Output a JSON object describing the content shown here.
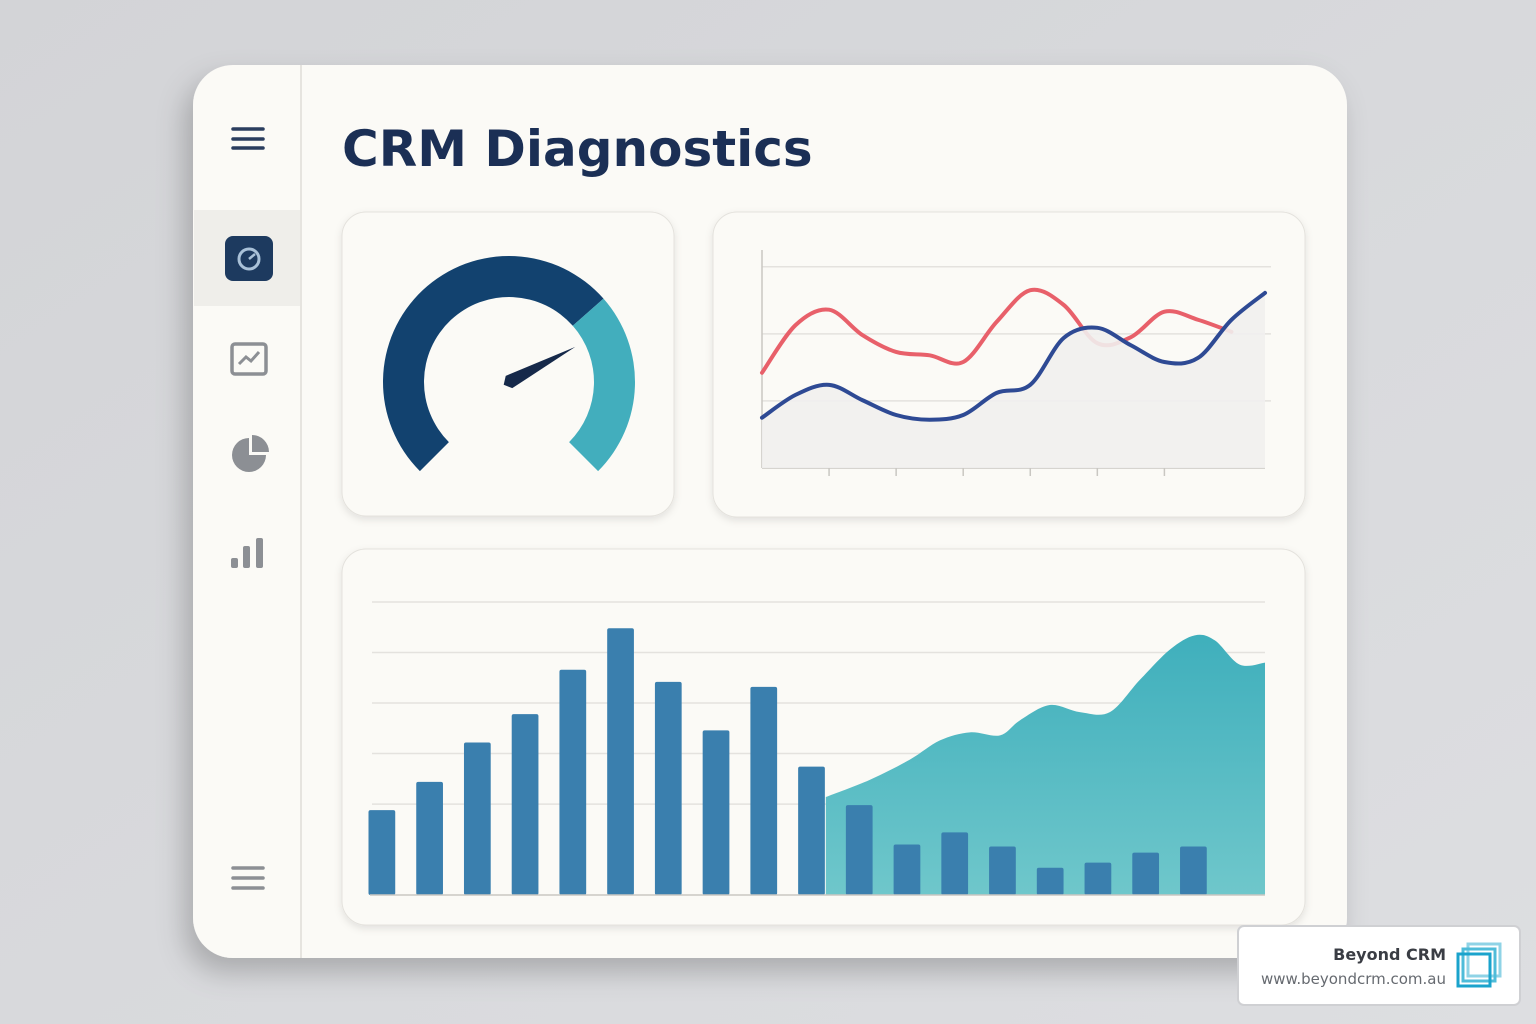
{
  "header": {
    "title": "CRM Diagnostics"
  },
  "gauge": {
    "min": 0,
    "max": 100,
    "value": 73,
    "needle_color": "#16294a",
    "zones": [
      {
        "to": 68,
        "color": "#12426f"
      },
      {
        "to": 100,
        "color": "#42aebd"
      }
    ]
  },
  "chart_data": [
    {
      "type": "line",
      "xlim": [
        0,
        7.5
      ],
      "ylim": [
        0,
        3.25
      ],
      "xticks": [
        1,
        2,
        3,
        4,
        5,
        6
      ],
      "yticks": [
        1,
        2,
        3
      ],
      "grid": true,
      "x": [
        0,
        0.5,
        1,
        1.5,
        2,
        2.5,
        3,
        3.5,
        4,
        4.5,
        5,
        5.5,
        6,
        6.5,
        7,
        7.5
      ],
      "series": [
        {
          "color": "#e8606a",
          "values": [
            1.42,
            2.13,
            2.36,
            1.98,
            1.73,
            1.68,
            1.58,
            2.18,
            2.65,
            2.43,
            1.86,
            1.95,
            2.33,
            2.21,
            2.03,
            null
          ]
        },
        {
          "color": "#2e4a94",
          "values": [
            0.75,
            1.09,
            1.24,
            1.01,
            0.79,
            0.72,
            0.79,
            1.12,
            1.24,
            1.94,
            2.09,
            1.83,
            1.58,
            1.64,
            2.21,
            2.61
          ]
        }
      ]
    },
    {
      "type": "bar",
      "xlim": [
        0,
        19
      ],
      "ylim": [
        0,
        290
      ],
      "yticks": [
        90,
        140,
        190,
        240,
        290
      ],
      "grid": true,
      "color": "#3a7fae",
      "categories": [
        null,
        null,
        null,
        null,
        null,
        null,
        null,
        null,
        null,
        null,
        null,
        null,
        null,
        null,
        null,
        null,
        null,
        null
      ],
      "values": [
        84,
        112,
        151,
        179,
        223,
        264,
        211,
        163,
        206,
        127,
        89,
        50,
        62,
        48,
        27,
        32,
        42,
        48
      ],
      "area": {
        "color": "#42b0bc",
        "x": [
          9.8,
          10.72,
          11.56,
          12.19,
          12.82,
          13.45,
          13.87,
          14.49,
          15.12,
          15.75,
          16.38,
          17.01,
          17.53,
          17.95,
          18.47,
          19.0
        ],
        "values": [
          97,
          114,
          134,
          153,
          161,
          158,
          173,
          188,
          181,
          181,
          213,
          243,
          257,
          252,
          228,
          230
        ]
      }
    }
  ],
  "badge": {
    "name": "Beyond CRM",
    "url": "www.beyondcrm.com.au"
  }
}
